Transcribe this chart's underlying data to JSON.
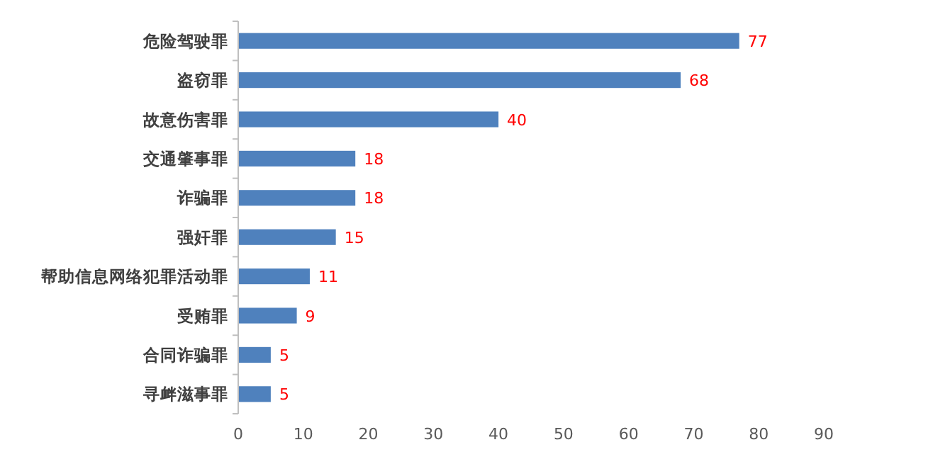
{
  "chart_data": {
    "type": "bar",
    "orientation": "horizontal",
    "categories": [
      "危险驾驶罪",
      "盗窃罪",
      "故意伤害罪",
      "交通肇事罪",
      "诈骗罪",
      "强奸罪",
      "帮助信息网络犯罪活动罪",
      "受贿罪",
      "合同诈骗罪",
      "寻衅滋事罪"
    ],
    "values": [
      77,
      68,
      40,
      18,
      18,
      15,
      11,
      9,
      5,
      5
    ],
    "color": "#4f81bd",
    "data_labels": true,
    "xlim": [
      0,
      90
    ],
    "xticks": [
      0,
      10,
      20,
      30,
      40,
      50,
      60,
      70,
      80,
      90
    ]
  }
}
